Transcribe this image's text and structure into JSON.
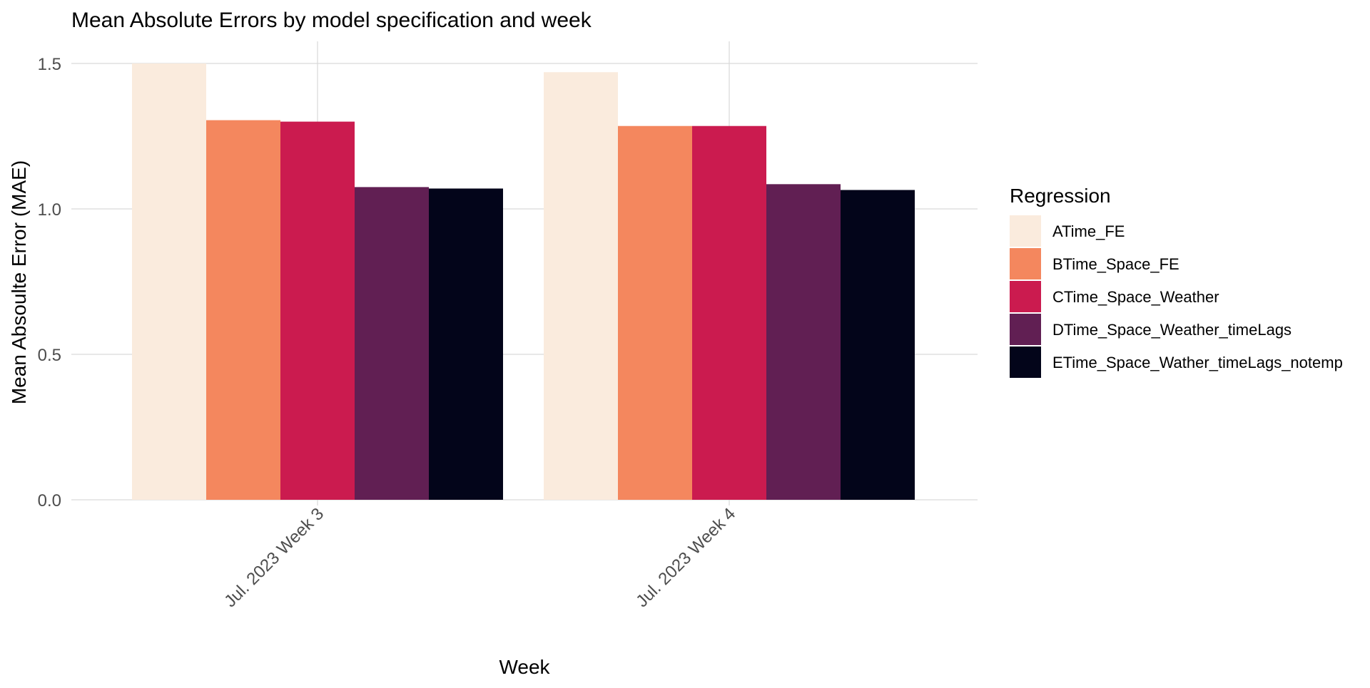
{
  "chart_data": {
    "type": "bar",
    "title": "Mean Absolute Errors by model specification and week",
    "xlabel": "Week",
    "ylabel": "Mean Absoulte Error (MAE)",
    "categories": [
      "Jul. 2023 Week 3",
      "Jul. 2023 Week 4"
    ],
    "series": [
      {
        "name": "ATime_FE",
        "color": "#FAEBDD",
        "values": [
          1.5,
          1.47
        ]
      },
      {
        "name": "BTime_Space_FE",
        "color": "#F4875E",
        "values": [
          1.305,
          1.285
        ]
      },
      {
        "name": "CTime_Space_Weather",
        "color": "#CB1B4F",
        "values": [
          1.3,
          1.285
        ]
      },
      {
        "name": "DTime_Space_Weather_timeLags",
        "color": "#611F53",
        "values": [
          1.075,
          1.085
        ]
      },
      {
        "name": "ETime_Space_Wather_timeLags_notemp",
        "color": "#03051A",
        "values": [
          1.07,
          1.065
        ]
      }
    ],
    "yticks": [
      "0.0",
      "0.5",
      "1.0",
      "1.5"
    ],
    "ylim": [
      0,
      1.55
    ],
    "legend_title": "Regression",
    "legend_position": "right",
    "grid": true,
    "x_tick_rotation": -45
  }
}
